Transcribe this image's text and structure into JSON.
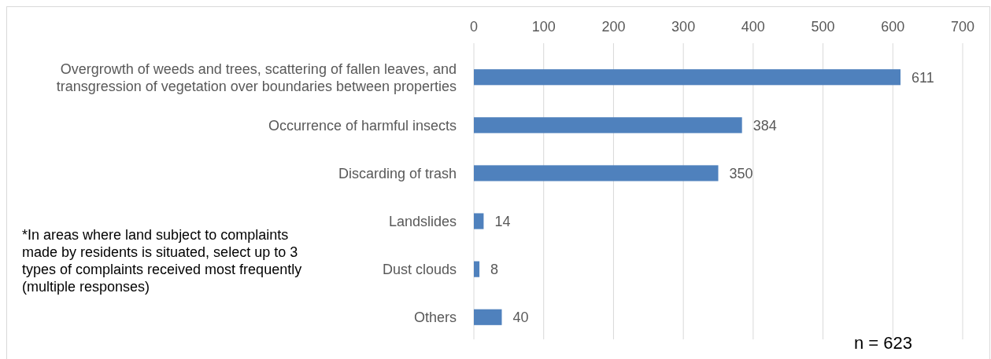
{
  "chart_data": {
    "type": "bar",
    "orientation": "horizontal",
    "categories": [
      "Overgrowth of weeds and trees, scattering of fallen leaves, and transgression of vegetation over boundaries between properties",
      "Occurrence of harmful insects",
      "Discarding of trash",
      "Landslides",
      "Dust clouds",
      "Others"
    ],
    "values": [
      611,
      384,
      350,
      14,
      8,
      40
    ],
    "color": "#4f81bd",
    "xlim": [
      0,
      700
    ],
    "xticks": [
      0,
      100,
      200,
      300,
      400,
      500,
      600,
      700
    ],
    "grid": "x",
    "data_labels": true,
    "annotations": [
      "*In areas where land subject to complaints made by residents is situated, select up to 3 types of complaints received most frequently (multiple responses)",
      "n = 623"
    ]
  }
}
